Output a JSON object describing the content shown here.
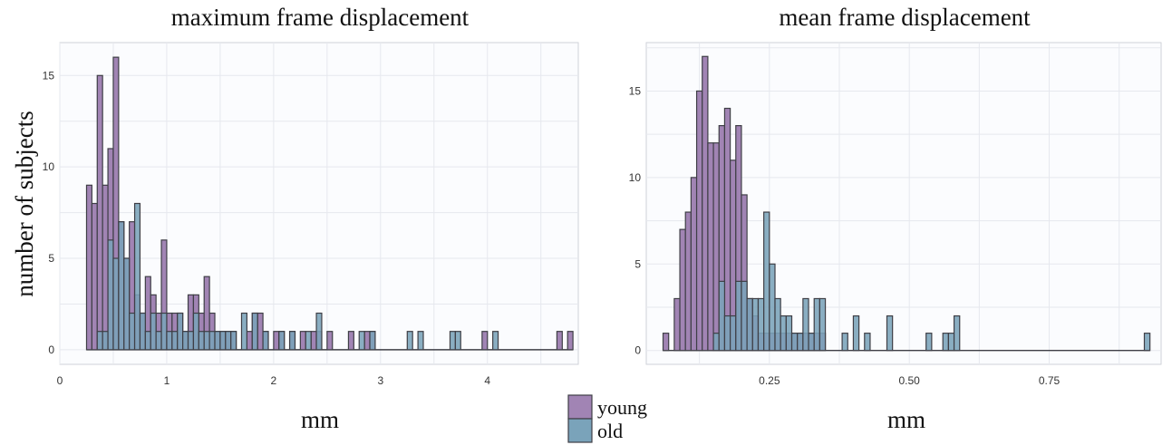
{
  "legend": {
    "entries": [
      {
        "label": "young",
        "color": "#a184b4"
      },
      {
        "label": "old",
        "color": "#7aa3ba"
      }
    ]
  },
  "colors": {
    "young": "#a184b4",
    "old": "#7aa3ba",
    "edge": "#3f3f46"
  },
  "chart_data": [
    {
      "type": "bar",
      "histogram": true,
      "title": "maximum frame displacement",
      "xlabel": "mm",
      "ylabel": "number of subjects",
      "xlim": [
        0,
        4.85
      ],
      "ylim": [
        -0.8,
        16.8
      ],
      "xticks": [
        0,
        1,
        2,
        3,
        4
      ],
      "yticks": [
        0,
        5,
        10,
        15
      ],
      "bin_width": 0.05,
      "grid": true,
      "legend_position": "bottom-center",
      "series": [
        {
          "name": "young",
          "color": "#a184b4",
          "bins": [
            [
              0.25,
              9
            ],
            [
              0.3,
              8
            ],
            [
              0.35,
              15
            ],
            [
              0.4,
              9
            ],
            [
              0.45,
              11
            ],
            [
              0.5,
              16
            ],
            [
              0.55,
              7
            ],
            [
              0.6,
              5
            ],
            [
              0.65,
              7
            ],
            [
              0.7,
              3
            ],
            [
              0.75,
              2
            ],
            [
              0.8,
              4
            ],
            [
              0.85,
              3
            ],
            [
              0.9,
              2
            ],
            [
              0.95,
              6
            ],
            [
              1.0,
              2
            ],
            [
              1.05,
              2
            ],
            [
              1.1,
              2
            ],
            [
              1.15,
              1
            ],
            [
              1.2,
              3
            ],
            [
              1.25,
              3
            ],
            [
              1.3,
              2
            ],
            [
              1.35,
              4
            ],
            [
              1.4,
              2
            ],
            [
              1.45,
              1
            ],
            [
              1.5,
              1
            ],
            [
              1.55,
              1
            ],
            [
              1.6,
              1
            ],
            [
              1.75,
              1
            ],
            [
              1.8,
              2
            ],
            [
              1.85,
              2
            ],
            [
              1.9,
              1
            ],
            [
              2.0,
              1
            ],
            [
              2.05,
              1
            ],
            [
              2.15,
              1
            ],
            [
              2.25,
              1
            ],
            [
              2.35,
              1
            ],
            [
              2.4,
              1
            ],
            [
              2.5,
              1
            ],
            [
              2.7,
              1
            ],
            [
              2.85,
              1
            ],
            [
              2.9,
              1
            ],
            [
              3.95,
              1
            ],
            [
              4.65,
              1
            ],
            [
              4.75,
              1
            ]
          ]
        },
        {
          "name": "old",
          "color": "#7aa3ba",
          "bins": [
            [
              0.35,
              1
            ],
            [
              0.4,
              1
            ],
            [
              0.45,
              6
            ],
            [
              0.5,
              5
            ],
            [
              0.55,
              7
            ],
            [
              0.6,
              5
            ],
            [
              0.65,
              2
            ],
            [
              0.7,
              8
            ],
            [
              0.75,
              2
            ],
            [
              0.8,
              1
            ],
            [
              0.85,
              2
            ],
            [
              0.9,
              1
            ],
            [
              0.95,
              2
            ],
            [
              1.0,
              1
            ],
            [
              1.05,
              1
            ],
            [
              1.1,
              2
            ],
            [
              1.15,
              1
            ],
            [
              1.2,
              1
            ],
            [
              1.25,
              2
            ],
            [
              1.3,
              1
            ],
            [
              1.35,
              1
            ],
            [
              1.4,
              1
            ],
            [
              1.45,
              1
            ],
            [
              1.5,
              1
            ],
            [
              1.55,
              1
            ],
            [
              1.6,
              1
            ],
            [
              1.7,
              2
            ],
            [
              1.8,
              2
            ],
            [
              1.9,
              1
            ],
            [
              2.05,
              1
            ],
            [
              2.15,
              1
            ],
            [
              2.3,
              1
            ],
            [
              2.4,
              2
            ],
            [
              2.8,
              1
            ],
            [
              2.9,
              1
            ],
            [
              3.25,
              1
            ],
            [
              3.35,
              1
            ],
            [
              3.65,
              1
            ],
            [
              3.7,
              1
            ],
            [
              4.05,
              1
            ]
          ]
        }
      ]
    },
    {
      "type": "bar",
      "histogram": true,
      "title": "mean frame displacement",
      "xlabel": "mm",
      "ylabel": "",
      "xlim": [
        0.03,
        0.95
      ],
      "ylim": [
        -0.8,
        17.8
      ],
      "xticks": [
        0.25,
        0.5,
        0.75
      ],
      "yticks": [
        0,
        5,
        10,
        15
      ],
      "bin_width": 0.01,
      "grid": true,
      "legend_position": "bottom-center",
      "series": [
        {
          "name": "young",
          "color": "#a184b4",
          "bins": [
            [
              0.06,
              1
            ],
            [
              0.08,
              3
            ],
            [
              0.09,
              7
            ],
            [
              0.1,
              8
            ],
            [
              0.11,
              10
            ],
            [
              0.12,
              15
            ],
            [
              0.13,
              17
            ],
            [
              0.14,
              12
            ],
            [
              0.15,
              12
            ],
            [
              0.16,
              13
            ],
            [
              0.17,
              14
            ],
            [
              0.18,
              11
            ],
            [
              0.19,
              13
            ],
            [
              0.2,
              9
            ],
            [
              0.21,
              3
            ],
            [
              0.22,
              2
            ],
            [
              0.23,
              1
            ],
            [
              0.24,
              1
            ],
            [
              0.25,
              1
            ],
            [
              0.26,
              1
            ],
            [
              0.27,
              1
            ],
            [
              0.28,
              1
            ],
            [
              0.29,
              1
            ],
            [
              0.3,
              1
            ],
            [
              0.31,
              1
            ],
            [
              0.32,
              1
            ],
            [
              0.33,
              1
            ],
            [
              0.34,
              1
            ]
          ]
        },
        {
          "name": "old",
          "color": "#7aa3ba",
          "bins": [
            [
              0.15,
              1
            ],
            [
              0.16,
              4
            ],
            [
              0.17,
              2
            ],
            [
              0.18,
              2
            ],
            [
              0.19,
              4
            ],
            [
              0.2,
              4
            ],
            [
              0.21,
              3
            ],
            [
              0.22,
              3
            ],
            [
              0.23,
              3
            ],
            [
              0.24,
              8
            ],
            [
              0.25,
              5
            ],
            [
              0.26,
              3
            ],
            [
              0.27,
              2
            ],
            [
              0.28,
              2
            ],
            [
              0.29,
              1
            ],
            [
              0.3,
              1
            ],
            [
              0.31,
              3
            ],
            [
              0.32,
              1
            ],
            [
              0.33,
              3
            ],
            [
              0.34,
              3
            ],
            [
              0.38,
              1
            ],
            [
              0.4,
              2
            ],
            [
              0.42,
              1
            ],
            [
              0.46,
              2
            ],
            [
              0.53,
              1
            ],
            [
              0.56,
              1
            ],
            [
              0.57,
              1
            ],
            [
              0.58,
              2
            ],
            [
              0.92,
              1
            ]
          ]
        }
      ]
    }
  ]
}
